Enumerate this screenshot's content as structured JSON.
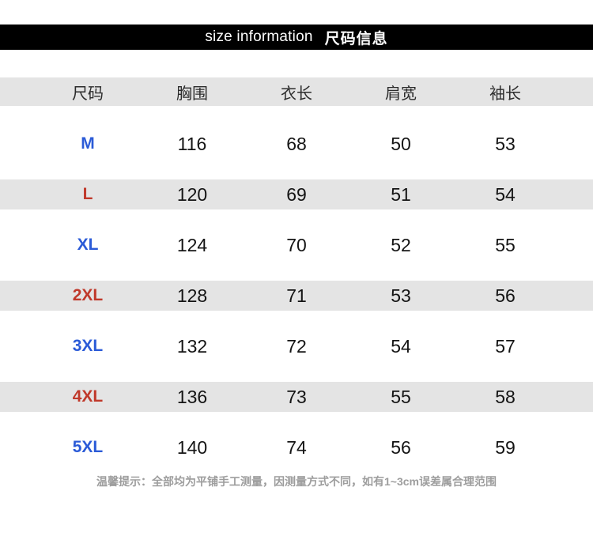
{
  "title": {
    "en": "size information",
    "zh": "尺码信息"
  },
  "table": {
    "columns": [
      {
        "key": "size",
        "label": "尺码"
      },
      {
        "key": "chest",
        "label": "胸围"
      },
      {
        "key": "length",
        "label": "衣长"
      },
      {
        "key": "shoulder",
        "label": "肩宽"
      },
      {
        "key": "sleeve",
        "label": "袖长"
      }
    ],
    "rows": [
      {
        "size_label": "M",
        "accent": "blue",
        "shaded": false,
        "values": [
          "116",
          "68",
          "50",
          "53"
        ]
      },
      {
        "size_label": "L",
        "accent": "red",
        "shaded": true,
        "values": [
          "120",
          "69",
          "51",
          "54"
        ]
      },
      {
        "size_label": "XL",
        "accent": "blue",
        "shaded": false,
        "values": [
          "124",
          "70",
          "52",
          "55"
        ]
      },
      {
        "size_label": "2XL",
        "accent": "red",
        "shaded": true,
        "values": [
          "128",
          "71",
          "53",
          "56"
        ]
      },
      {
        "size_label": "3XL",
        "accent": "blue",
        "shaded": false,
        "values": [
          "132",
          "72",
          "54",
          "57"
        ]
      },
      {
        "size_label": "4XL",
        "accent": "red",
        "shaded": true,
        "values": [
          "136",
          "73",
          "55",
          "58"
        ]
      },
      {
        "size_label": "5XL",
        "accent": "blue",
        "shaded": false,
        "values": [
          "140",
          "74",
          "56",
          "59"
        ]
      }
    ]
  },
  "footer": {
    "note": "温馨提示：全部均为平铺手工测量，因测量方式不同，如有1~3cm误差属合理范围"
  },
  "colors": {
    "accent_blue": "#2b5bd7",
    "accent_red": "#c0392b",
    "band_gray": "#e4e4e4",
    "bar_black": "#000000",
    "note_gray": "#9d9d9d"
  }
}
